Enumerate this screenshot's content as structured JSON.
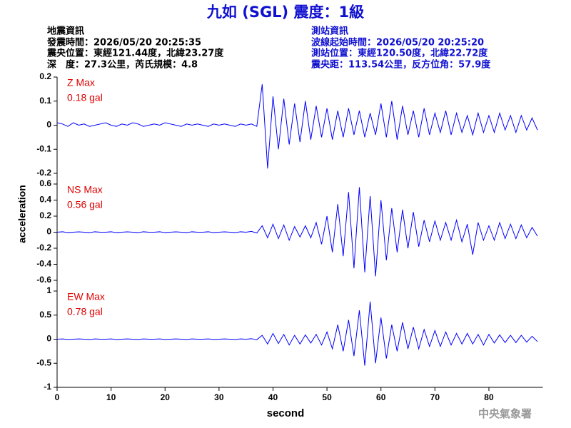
{
  "header": {
    "title": "九如 (SGL) 震度：1級",
    "left": [
      "地震資訊",
      "發震時間：2026/05/20 20:25:35",
      "震央位置：東經121.44度，北緯23.27度",
      "深　度：27.3公里，芮氏規模：4.8"
    ],
    "right": [
      "測站資訊",
      "波線起始時間：2026/05/20 20:25:20",
      "測站位置：東經120.50度，北緯22.72度",
      "震央距：113.54公里，反方位角：57.9度"
    ],
    "footer": "中央氣象署"
  },
  "chart_data": [
    {
      "type": "line",
      "annotation": "Z Max",
      "max_label": "0.18 gal",
      "ylim": [
        -0.2,
        0.2
      ],
      "yticks": [
        0.2,
        0.1,
        0,
        -0.1,
        -0.2
      ],
      "xlim": [
        0,
        90
      ],
      "x": [
        0,
        1,
        2,
        3,
        4,
        5,
        6,
        7,
        8,
        9,
        10,
        11,
        12,
        13,
        14,
        15,
        16,
        17,
        18,
        19,
        20,
        21,
        22,
        23,
        24,
        25,
        26,
        27,
        28,
        29,
        30,
        31,
        32,
        33,
        34,
        35,
        36,
        37,
        38,
        39,
        40,
        41,
        42,
        43,
        44,
        45,
        46,
        47,
        48,
        49,
        50,
        51,
        52,
        53,
        54,
        55,
        56,
        57,
        58,
        59,
        60,
        61,
        62,
        63,
        64,
        65,
        66,
        67,
        68,
        69,
        70,
        71,
        72,
        73,
        74,
        75,
        76,
        77,
        78,
        79,
        80,
        81,
        82,
        83,
        84,
        85,
        86,
        87,
        88,
        89
      ],
      "series": [
        {
          "color": "#0000ff",
          "values": [
            0.01,
            0.005,
            -0.005,
            0.01,
            0,
            0.005,
            -0.005,
            0,
            0.005,
            0.01,
            0,
            -0.005,
            0.005,
            0,
            0.01,
            0.005,
            -0.005,
            0,
            0.005,
            0,
            0.01,
            0.005,
            0,
            -0.005,
            0.005,
            0,
            0.005,
            0,
            -0.005,
            0.005,
            0,
            0.005,
            0,
            -0.005,
            0.005,
            0,
            0.005,
            -0.005,
            0.17,
            -0.18,
            0.12,
            -0.1,
            0.11,
            -0.08,
            0.09,
            -0.07,
            0.1,
            -0.06,
            0.08,
            -0.05,
            0.07,
            -0.06,
            0.06,
            -0.05,
            0.07,
            -0.04,
            0.06,
            -0.05,
            0.05,
            -0.04,
            0.09,
            -0.05,
            0.1,
            -0.06,
            0.08,
            -0.04,
            0.06,
            -0.05,
            0.07,
            -0.04,
            0.05,
            -0.03,
            0.06,
            -0.04,
            0.05,
            -0.03,
            0.04,
            -0.04,
            0.05,
            -0.03,
            0.04,
            -0.03,
            0.05,
            -0.02,
            0.04,
            -0.03,
            0.04,
            -0.02,
            0.03,
            -0.02
          ]
        }
      ]
    },
    {
      "type": "line",
      "annotation": "NS Max",
      "max_label": "0.56 gal",
      "ylabel": "acceleration",
      "ylim": [
        -0.6,
        0.6
      ],
      "yticks": [
        0.6,
        0.4,
        0.2,
        0,
        -0.2,
        -0.4,
        -0.6
      ],
      "xlim": [
        0,
        90
      ],
      "x": [
        0,
        1,
        2,
        3,
        4,
        5,
        6,
        7,
        8,
        9,
        10,
        11,
        12,
        13,
        14,
        15,
        16,
        17,
        18,
        19,
        20,
        21,
        22,
        23,
        24,
        25,
        26,
        27,
        28,
        29,
        30,
        31,
        32,
        33,
        34,
        35,
        36,
        37,
        38,
        39,
        40,
        41,
        42,
        43,
        44,
        45,
        46,
        47,
        48,
        49,
        50,
        51,
        52,
        53,
        54,
        55,
        56,
        57,
        58,
        59,
        60,
        61,
        62,
        63,
        64,
        65,
        66,
        67,
        68,
        69,
        70,
        71,
        72,
        73,
        74,
        75,
        76,
        77,
        78,
        79,
        80,
        81,
        82,
        83,
        84,
        85,
        86,
        87,
        88,
        89
      ],
      "series": [
        {
          "color": "#0000ff",
          "values": [
            0,
            0.005,
            -0.005,
            0,
            0.005,
            0,
            -0.005,
            0.005,
            0,
            0,
            0.005,
            -0.005,
            0,
            0.005,
            0,
            -0.005,
            0.005,
            0,
            0,
            0.005,
            -0.005,
            0,
            0.005,
            0,
            -0.005,
            0.005,
            0,
            0,
            0.005,
            -0.005,
            0,
            0.005,
            0,
            -0.005,
            0.005,
            0,
            0.01,
            -0.01,
            0.08,
            -0.07,
            0.1,
            -0.08,
            0.09,
            -0.1,
            0.07,
            -0.06,
            0.08,
            -0.07,
            0.12,
            -0.15,
            0.2,
            -0.25,
            0.35,
            -0.3,
            0.5,
            -0.45,
            0.56,
            -0.5,
            0.45,
            -0.55,
            0.4,
            -0.35,
            0.3,
            -0.25,
            0.28,
            -0.2,
            0.25,
            -0.18,
            0.15,
            -0.12,
            0.14,
            -0.1,
            0.12,
            -0.1,
            0.15,
            -0.12,
            0.1,
            -0.28,
            0.12,
            -0.1,
            0.08,
            -0.1,
            0.12,
            -0.08,
            0.1,
            -0.08,
            0.09,
            -0.07,
            0.06,
            -0.05
          ]
        }
      ]
    },
    {
      "type": "line",
      "annotation": "EW Max",
      "max_label": "0.78 gal",
      "xlabel": "second",
      "ylim": [
        -1,
        1
      ],
      "yticks": [
        1,
        0.5,
        0,
        -0.5,
        -1
      ],
      "xlim": [
        0,
        90
      ],
      "xticks": [
        0,
        10,
        20,
        30,
        40,
        50,
        60,
        70,
        80
      ],
      "x": [
        0,
        1,
        2,
        3,
        4,
        5,
        6,
        7,
        8,
        9,
        10,
        11,
        12,
        13,
        14,
        15,
        16,
        17,
        18,
        19,
        20,
        21,
        22,
        23,
        24,
        25,
        26,
        27,
        28,
        29,
        30,
        31,
        32,
        33,
        34,
        35,
        36,
        37,
        38,
        39,
        40,
        41,
        42,
        43,
        44,
        45,
        46,
        47,
        48,
        49,
        50,
        51,
        52,
        53,
        54,
        55,
        56,
        57,
        58,
        59,
        60,
        61,
        62,
        63,
        64,
        65,
        66,
        67,
        68,
        69,
        70,
        71,
        72,
        73,
        74,
        75,
        76,
        77,
        78,
        79,
        80,
        81,
        82,
        83,
        84,
        85,
        86,
        87,
        88,
        89
      ],
      "series": [
        {
          "color": "#0000ff",
          "values": [
            0,
            0.005,
            -0.005,
            0,
            0.005,
            0,
            -0.005,
            0.005,
            0,
            0,
            0.005,
            -0.005,
            0,
            0.005,
            0,
            -0.005,
            0.005,
            0,
            0,
            0.005,
            -0.005,
            0,
            0.005,
            0,
            -0.005,
            0.005,
            0,
            0,
            0.005,
            -0.005,
            0,
            0.005,
            0,
            -0.005,
            0.005,
            0,
            0.01,
            -0.01,
            0.08,
            -0.1,
            0.12,
            -0.09,
            0.1,
            -0.12,
            0.08,
            -0.1,
            0.09,
            -0.08,
            0.1,
            -0.12,
            0.15,
            -0.2,
            0.3,
            -0.25,
            0.4,
            -0.35,
            0.6,
            -0.55,
            0.78,
            -0.5,
            0.45,
            -0.4,
            0.3,
            -0.25,
            0.35,
            -0.2,
            0.25,
            -0.2,
            0.2,
            -0.15,
            0.18,
            -0.15,
            0.15,
            -0.12,
            0.12,
            -0.1,
            0.12,
            -0.1,
            0.1,
            -0.12,
            0.1,
            -0.08,
            0.09,
            -0.07,
            0.08,
            -0.07,
            0.08,
            -0.06,
            0.06,
            -0.05
          ]
        }
      ]
    }
  ]
}
